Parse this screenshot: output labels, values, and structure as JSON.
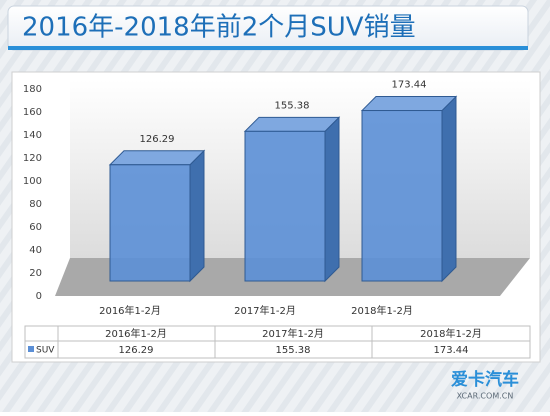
{
  "chart_data": {
    "type": "bar3d",
    "title": "2016年-2018年前2个月SUV销量",
    "categories": [
      "2016年1-2月",
      "2017年1-2月",
      "2018年1-2月"
    ],
    "series": [
      {
        "name": "SUV",
        "color": "#5b8fd6",
        "values": [
          126.29,
          155.38,
          173.44
        ]
      }
    ],
    "ylim": [
      0,
      180
    ],
    "yticks": [
      0,
      20,
      40,
      60,
      80,
      100,
      120,
      140,
      160,
      180
    ]
  },
  "watermark": {
    "brand": "爱卡汽车",
    "site": "XCAR.COM.CN"
  }
}
